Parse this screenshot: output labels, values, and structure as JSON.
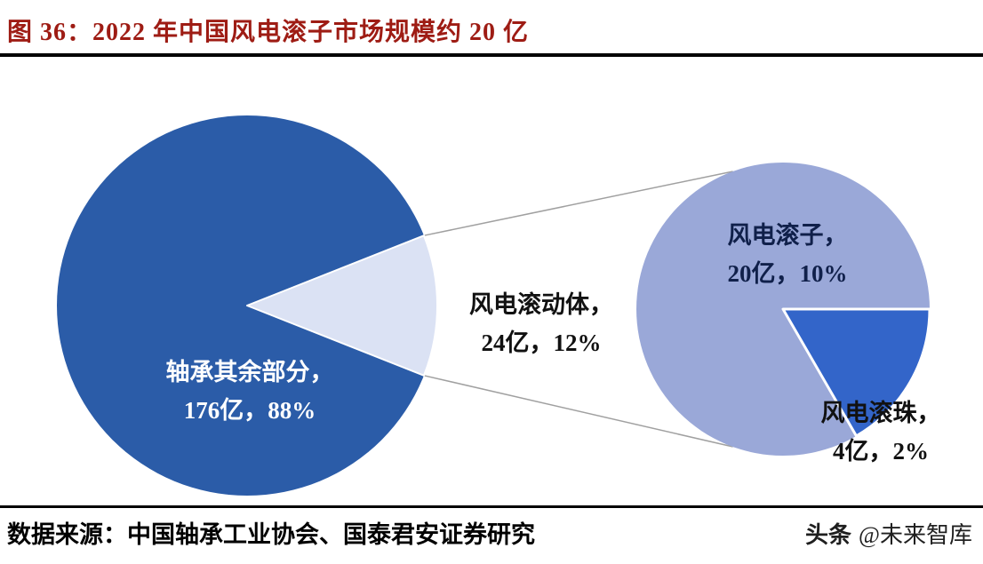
{
  "header": {
    "title": "图 36：2022 年中国风电滚子市场规模约 20 亿"
  },
  "colors": {
    "title_red": "#9e1c14",
    "rule_black": "#000000",
    "main_dark_blue": "#2b5ca8",
    "exploded_light": "#dbe2f4",
    "secondary_light": "#9aa8d8",
    "secondary_dark": "#3365c9",
    "connector_gray": "#a0a0a0"
  },
  "chart_data": {
    "type": "pie",
    "variant": "pie-of-pie",
    "title": "2022 年中国风电滚子市场规模约 20 亿",
    "unit": "亿元",
    "legend": "none",
    "connector_color": "#a0a0a0",
    "main_pie": {
      "total": 200,
      "slices": [
        {
          "name": "轴承其余部分",
          "value": 176,
          "percent": 88,
          "color": "#2b5ca8",
          "label_color": "#ffffff"
        },
        {
          "name": "风电滚动体",
          "value": 24,
          "percent": 12,
          "color": "#dbe2f4",
          "label_color": "#111111",
          "exploded_to_secondary": true
        }
      ]
    },
    "secondary_pie": {
      "total": 24,
      "slices": [
        {
          "name": "风电滚子",
          "value": 20,
          "percent": 10,
          "color": "#9aa8d8"
        },
        {
          "name": "风电滚珠",
          "value": 4,
          "percent": 2,
          "color": "#3365c9"
        }
      ]
    }
  },
  "labels": {
    "main": {
      "line1": "轴承其余部分，",
      "line2": "176亿，88%"
    },
    "explode": {
      "line1": "风电滚动体，",
      "line2": "24亿，12%"
    },
    "secondary_major": {
      "line1": "风电滚子，",
      "line2": "20亿，10%"
    },
    "secondary_minor": {
      "line1": "风电滚珠，",
      "line2": "4亿，2%"
    }
  },
  "footer": {
    "source": "数据来源：中国轴承工业协会、国泰君安证券研究",
    "watermark_logo": "头条",
    "watermark_handle": "@未来智库"
  }
}
